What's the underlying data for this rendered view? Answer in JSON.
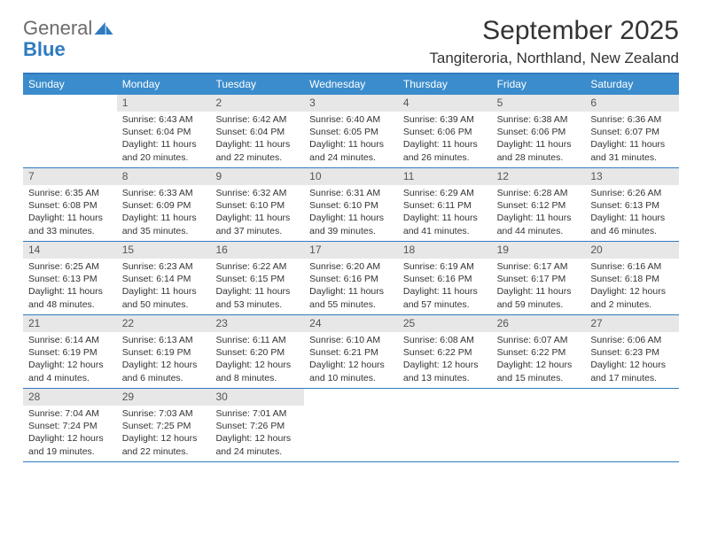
{
  "brand": {
    "name1": "General",
    "name2": "Blue",
    "color_gray": "#6b6b6b",
    "color_blue": "#2f7bbf"
  },
  "title": "September 2025",
  "location": "Tangiteroria, Northland, New Zealand",
  "colors": {
    "header_bg": "#3b8ccc",
    "border": "#2f7bbf",
    "daynum_bg": "#e7e7e7",
    "text": "#333333"
  },
  "weekdays": [
    "Sunday",
    "Monday",
    "Tuesday",
    "Wednesday",
    "Thursday",
    "Friday",
    "Saturday"
  ],
  "labels": {
    "sunrise": "Sunrise:",
    "sunset": "Sunset:",
    "daylight": "Daylight:"
  },
  "weeks": [
    [
      null,
      {
        "n": "1",
        "sr": "6:43 AM",
        "ss": "6:04 PM",
        "dl": "11 hours and 20 minutes."
      },
      {
        "n": "2",
        "sr": "6:42 AM",
        "ss": "6:04 PM",
        "dl": "11 hours and 22 minutes."
      },
      {
        "n": "3",
        "sr": "6:40 AM",
        "ss": "6:05 PM",
        "dl": "11 hours and 24 minutes."
      },
      {
        "n": "4",
        "sr": "6:39 AM",
        "ss": "6:06 PM",
        "dl": "11 hours and 26 minutes."
      },
      {
        "n": "5",
        "sr": "6:38 AM",
        "ss": "6:06 PM",
        "dl": "11 hours and 28 minutes."
      },
      {
        "n": "6",
        "sr": "6:36 AM",
        "ss": "6:07 PM",
        "dl": "11 hours and 31 minutes."
      }
    ],
    [
      {
        "n": "7",
        "sr": "6:35 AM",
        "ss": "6:08 PM",
        "dl": "11 hours and 33 minutes."
      },
      {
        "n": "8",
        "sr": "6:33 AM",
        "ss": "6:09 PM",
        "dl": "11 hours and 35 minutes."
      },
      {
        "n": "9",
        "sr": "6:32 AM",
        "ss": "6:10 PM",
        "dl": "11 hours and 37 minutes."
      },
      {
        "n": "10",
        "sr": "6:31 AM",
        "ss": "6:10 PM",
        "dl": "11 hours and 39 minutes."
      },
      {
        "n": "11",
        "sr": "6:29 AM",
        "ss": "6:11 PM",
        "dl": "11 hours and 41 minutes."
      },
      {
        "n": "12",
        "sr": "6:28 AM",
        "ss": "6:12 PM",
        "dl": "11 hours and 44 minutes."
      },
      {
        "n": "13",
        "sr": "6:26 AM",
        "ss": "6:13 PM",
        "dl": "11 hours and 46 minutes."
      }
    ],
    [
      {
        "n": "14",
        "sr": "6:25 AM",
        "ss": "6:13 PM",
        "dl": "11 hours and 48 minutes."
      },
      {
        "n": "15",
        "sr": "6:23 AM",
        "ss": "6:14 PM",
        "dl": "11 hours and 50 minutes."
      },
      {
        "n": "16",
        "sr": "6:22 AM",
        "ss": "6:15 PM",
        "dl": "11 hours and 53 minutes."
      },
      {
        "n": "17",
        "sr": "6:20 AM",
        "ss": "6:16 PM",
        "dl": "11 hours and 55 minutes."
      },
      {
        "n": "18",
        "sr": "6:19 AM",
        "ss": "6:16 PM",
        "dl": "11 hours and 57 minutes."
      },
      {
        "n": "19",
        "sr": "6:17 AM",
        "ss": "6:17 PM",
        "dl": "11 hours and 59 minutes."
      },
      {
        "n": "20",
        "sr": "6:16 AM",
        "ss": "6:18 PM",
        "dl": "12 hours and 2 minutes."
      }
    ],
    [
      {
        "n": "21",
        "sr": "6:14 AM",
        "ss": "6:19 PM",
        "dl": "12 hours and 4 minutes."
      },
      {
        "n": "22",
        "sr": "6:13 AM",
        "ss": "6:19 PM",
        "dl": "12 hours and 6 minutes."
      },
      {
        "n": "23",
        "sr": "6:11 AM",
        "ss": "6:20 PM",
        "dl": "12 hours and 8 minutes."
      },
      {
        "n": "24",
        "sr": "6:10 AM",
        "ss": "6:21 PM",
        "dl": "12 hours and 10 minutes."
      },
      {
        "n": "25",
        "sr": "6:08 AM",
        "ss": "6:22 PM",
        "dl": "12 hours and 13 minutes."
      },
      {
        "n": "26",
        "sr": "6:07 AM",
        "ss": "6:22 PM",
        "dl": "12 hours and 15 minutes."
      },
      {
        "n": "27",
        "sr": "6:06 AM",
        "ss": "6:23 PM",
        "dl": "12 hours and 17 minutes."
      }
    ],
    [
      {
        "n": "28",
        "sr": "7:04 AM",
        "ss": "7:24 PM",
        "dl": "12 hours and 19 minutes."
      },
      {
        "n": "29",
        "sr": "7:03 AM",
        "ss": "7:25 PM",
        "dl": "12 hours and 22 minutes."
      },
      {
        "n": "30",
        "sr": "7:01 AM",
        "ss": "7:26 PM",
        "dl": "12 hours and 24 minutes."
      },
      null,
      null,
      null,
      null
    ]
  ]
}
